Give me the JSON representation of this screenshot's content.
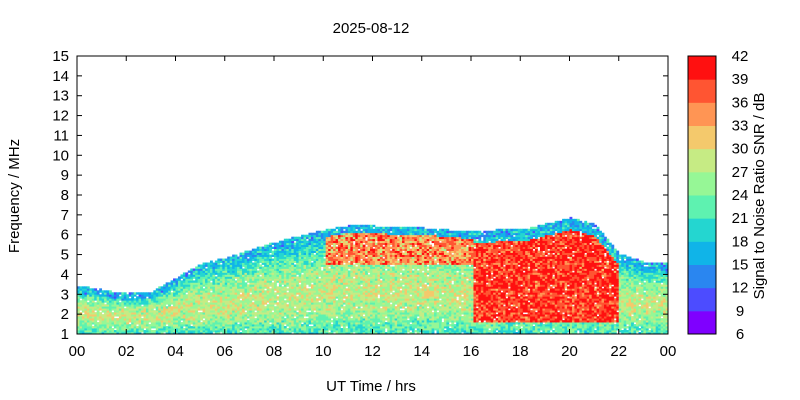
{
  "chart_data": {
    "type": "heatmap",
    "title": "2025-08-12",
    "xlabel": "UT Time / hrs",
    "ylabel": "Frequency / MHz",
    "colorbar_label": "Signal to Noise Ratio SNR / dB",
    "x_tick_labels": [
      "00",
      "02",
      "04",
      "06",
      "08",
      "10",
      "12",
      "14",
      "16",
      "18",
      "20",
      "22",
      "00"
    ],
    "xlim": [
      0,
      24
    ],
    "ylim": [
      1,
      15
    ],
    "y_ticks": [
      1,
      2,
      3,
      4,
      5,
      6,
      7,
      8,
      9,
      10,
      11,
      12,
      13,
      14,
      15
    ],
    "colorbar": {
      "ticks": [
        6,
        9,
        12,
        15,
        18,
        21,
        24,
        27,
        30,
        33,
        36,
        39,
        42
      ],
      "range": [
        6,
        42
      ],
      "colors": [
        "#7f00ff",
        "#4c4cff",
        "#2a86f0",
        "#10b4e8",
        "#24d6d0",
        "#5ef2b0",
        "#96f796",
        "#c6eb84",
        "#f4c96c",
        "#ff9554",
        "#ff5532",
        "#ff1010"
      ]
    },
    "snr_description": {
      "upper_edge_mhz": [
        [
          0,
          3.4
        ],
        [
          1,
          3.2
        ],
        [
          2,
          3.0
        ],
        [
          3,
          3.1
        ],
        [
          4,
          3.8
        ],
        [
          5,
          4.5
        ],
        [
          6,
          4.8
        ],
        [
          7,
          5.2
        ],
        [
          8,
          5.6
        ],
        [
          9,
          5.9
        ],
        [
          10,
          6.2
        ],
        [
          11,
          6.4
        ],
        [
          12,
          6.4
        ],
        [
          13,
          6.3
        ],
        [
          14,
          6.3
        ],
        [
          15,
          6.2
        ],
        [
          16,
          6.1
        ],
        [
          17,
          6.2
        ],
        [
          18,
          6.2
        ],
        [
          19,
          6.5
        ],
        [
          20,
          6.8
        ],
        [
          21,
          6.5
        ],
        [
          22,
          5.0
        ],
        [
          23,
          4.6
        ],
        [
          24,
          4.5
        ]
      ],
      "lower_edge_mhz": 1,
      "peak_snr_db": 42,
      "peak_region_hours": [
        16,
        22
      ]
    }
  }
}
